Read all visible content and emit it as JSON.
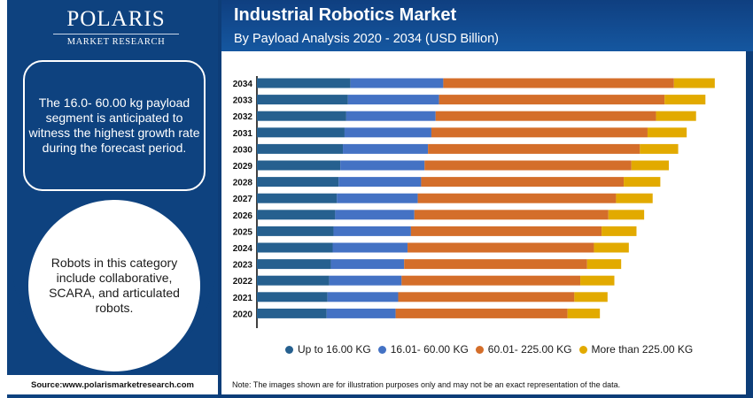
{
  "brand": {
    "name": "POLARIS",
    "tagline": "MARKET RESEARCH"
  },
  "header": {
    "title": "Industrial Robotics Market",
    "subtitle": "By Payload Analysis 2020 - 2034 (USD Billion)"
  },
  "sidebar": {
    "info_text": "The 16.0- 60.00 kg payload segment is anticipated to witness the highest growth rate during the forecast period.",
    "circle_text": "Robots in this category include collaborative, SCARA, and articulated robots.",
    "source": "Source:www.polarismarketresearch.com"
  },
  "footer": {
    "note": "Note: The images shown are for illustration purposes only and may not be an exact representation of the data."
  },
  "colors": {
    "up_to_16": "#26608f",
    "16_to_60": "#4472c4",
    "60_to_225": "#d46e2a",
    "more_than_225": "#e2aa00",
    "brand_blue": "#0d3d78"
  },
  "chart_data": {
    "type": "bar",
    "orientation": "horizontal",
    "stacked": true,
    "title": "Industrial Robotics Market",
    "subtitle": "By Payload Analysis 2020 - 2034 (USD Billion)",
    "xlabel": "",
    "ylabel": "",
    "value_axis_shown": false,
    "value_units_note": "relative estimated sizes (no value axis printed)",
    "xlim": [
      0,
      560
    ],
    "grid": false,
    "legend_position": "bottom",
    "categories": [
      "2034",
      "2033",
      "2032",
      "2031",
      "2030",
      "2029",
      "2028",
      "2027",
      "2026",
      "2025",
      "2024",
      "2023",
      "2022",
      "2021",
      "2020"
    ],
    "series": [
      {
        "name": "Up to 16.00 KG",
        "color": "#26608f",
        "values": [
          110,
          107,
          105,
          103,
          101,
          98,
          96,
          94,
          92,
          90,
          89,
          87,
          85,
          83,
          82
        ]
      },
      {
        "name": "16.01- 60.00 KG",
        "color": "#4472c4",
        "values": [
          109,
          107,
          105,
          102,
          100,
          99,
          97,
          95,
          93,
          91,
          88,
          86,
          85,
          83,
          81
        ]
      },
      {
        "name": "60.01- 225.00 KG",
        "color": "#d46e2a",
        "values": [
          271,
          265,
          259,
          254,
          249,
          243,
          238,
          233,
          228,
          224,
          219,
          215,
          210,
          207,
          202
        ]
      },
      {
        "name": "More than 225.00 KG",
        "color": "#e2aa00",
        "values": [
          48,
          48,
          47,
          46,
          45,
          44,
          43,
          43,
          42,
          41,
          41,
          40,
          40,
          39,
          38
        ]
      }
    ]
  }
}
